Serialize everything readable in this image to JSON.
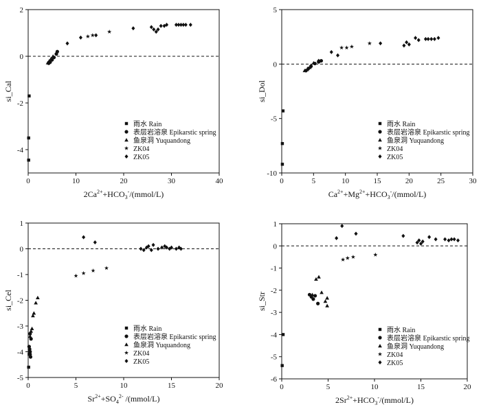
{
  "chart_data": [
    {
      "type": "scatter",
      "ylabel": "si_Cal",
      "xlabel_parts": [
        {
          "t": "2Ca"
        },
        {
          "t": "2+",
          "sup": true
        },
        {
          "t": "+HCO"
        },
        {
          "t": "3",
          "sub": true
        },
        {
          "t": "-",
          "sup": true
        },
        {
          "t": "/(mmol/L)"
        }
      ],
      "xlim": [
        0,
        40
      ],
      "ylim": [
        -5,
        2
      ],
      "xticks": [
        0,
        10,
        20,
        30,
        40
      ],
      "yticks": [
        -4,
        -2,
        0,
        2
      ],
      "ref_line_y": 0,
      "legend": [
        "雨水 Rain",
        "表层岩溶泉 Epikarstic spring",
        "鱼泉洞 Yuquandong",
        "ZK04",
        "ZK05"
      ],
      "series": [
        {
          "name": "雨水 Rain",
          "marker": "square",
          "points": [
            [
              0.2,
              -1.7
            ],
            [
              0.1,
              -3.5
            ],
            [
              0.1,
              -4.45
            ]
          ]
        },
        {
          "name": "表层岩溶泉 Epikarstic spring",
          "marker": "circle",
          "points": [
            [
              4.3,
              -0.3
            ],
            [
              4.6,
              -0.25
            ],
            [
              5.0,
              -0.15
            ],
            [
              5.4,
              -0.05
            ],
            [
              5.9,
              0.1
            ],
            [
              6.1,
              0.2
            ]
          ]
        },
        {
          "name": "鱼泉洞 Yuquandong",
          "marker": "triangle",
          "points": [
            [
              4.1,
              -0.28
            ],
            [
              4.4,
              -0.2
            ],
            [
              4.8,
              -0.1
            ],
            [
              5.2,
              0.0
            ]
          ]
        },
        {
          "name": "ZK04",
          "marker": "star",
          "points": [
            [
              12.5,
              0.85
            ],
            [
              13.5,
              0.9
            ],
            [
              17.0,
              1.05
            ]
          ]
        },
        {
          "name": "ZK05",
          "marker": "diamond",
          "points": [
            [
              8.2,
              0.55
            ],
            [
              11.0,
              0.8
            ],
            [
              14.2,
              0.9
            ],
            [
              22.0,
              1.2
            ],
            [
              25.8,
              1.25
            ],
            [
              26.3,
              1.15
            ],
            [
              26.8,
              1.05
            ],
            [
              27.2,
              1.15
            ],
            [
              27.8,
              1.3
            ],
            [
              28.5,
              1.3
            ],
            [
              29.0,
              1.35
            ],
            [
              31.0,
              1.35
            ],
            [
              31.5,
              1.35
            ],
            [
              32.0,
              1.35
            ],
            [
              32.5,
              1.35
            ],
            [
              33.0,
              1.35
            ],
            [
              34.0,
              1.35
            ]
          ]
        }
      ]
    },
    {
      "type": "scatter",
      "ylabel": "si_Dol",
      "xlabel_parts": [
        {
          "t": "Ca"
        },
        {
          "t": "2+",
          "sup": true
        },
        {
          "t": "+Mg"
        },
        {
          "t": "2+",
          "sup": true
        },
        {
          "t": "+HCO"
        },
        {
          "t": "3",
          "sub": true
        },
        {
          "t": "-",
          "sup": true
        },
        {
          "t": "/(mmol/L)"
        }
      ],
      "xlim": [
        0,
        30
      ],
      "ylim": [
        -10,
        5
      ],
      "xticks": [
        0,
        5,
        10,
        15,
        20,
        25,
        30
      ],
      "yticks": [
        -10,
        -5,
        0,
        5
      ],
      "ref_line_y": 0,
      "legend": [
        "雨水 Rain",
        "表层岩溶泉 Epikarstic spring",
        "鱼泉洞 Yuquandong",
        "ZK04",
        "ZK05"
      ],
      "series": [
        {
          "name": "雨水 Rain",
          "marker": "square",
          "points": [
            [
              0.2,
              -4.3
            ],
            [
              0.1,
              -7.3
            ],
            [
              0.1,
              -9.2
            ]
          ]
        },
        {
          "name": "表层岩溶泉 Epikarstic spring",
          "marker": "circle",
          "points": [
            [
              3.8,
              -0.6
            ],
            [
              4.2,
              -0.4
            ],
            [
              4.6,
              -0.2
            ],
            [
              5.2,
              0.05
            ],
            [
              5.8,
              0.2
            ],
            [
              6.2,
              0.3
            ]
          ]
        },
        {
          "name": "鱼泉洞 Yuquandong",
          "marker": "triangle",
          "points": [
            [
              3.6,
              -0.6
            ],
            [
              4.0,
              -0.5
            ],
            [
              4.4,
              -0.3
            ],
            [
              5.0,
              0.1
            ]
          ]
        },
        {
          "name": "ZK04",
          "marker": "star",
          "points": [
            [
              9.4,
              1.5
            ],
            [
              10.2,
              1.5
            ],
            [
              11.0,
              1.6
            ],
            [
              13.8,
              1.9
            ]
          ]
        },
        {
          "name": "ZK05",
          "marker": "diamond",
          "points": [
            [
              5.8,
              0.3
            ],
            [
              7.8,
              1.1
            ],
            [
              8.8,
              0.8
            ],
            [
              15.5,
              1.9
            ],
            [
              19.2,
              1.7
            ],
            [
              19.6,
              2.0
            ],
            [
              20.0,
              1.8
            ],
            [
              21.0,
              2.4
            ],
            [
              21.5,
              2.2
            ],
            [
              22.6,
              2.3
            ],
            [
              23.0,
              2.3
            ],
            [
              23.5,
              2.3
            ],
            [
              24.0,
              2.3
            ],
            [
              24.6,
              2.4
            ]
          ]
        }
      ]
    },
    {
      "type": "scatter",
      "ylabel": "si_Cel",
      "xlabel_parts": [
        {
          "t": "Sr"
        },
        {
          "t": "2+",
          "sup": true
        },
        {
          "t": "+SO"
        },
        {
          "t": "4",
          "sub": true
        },
        {
          "t": "2-",
          "sup": true
        },
        {
          "t": " /(mmol/L)"
        }
      ],
      "xlim": [
        0,
        20
      ],
      "ylim": [
        -5,
        1
      ],
      "xticks": [
        0,
        5,
        10,
        15,
        20
      ],
      "yticks": [
        -5,
        -4,
        -3,
        -2,
        -1,
        0,
        1
      ],
      "ref_line_y": 0,
      "legend": [
        "雨水 Rain",
        "表层岩溶泉 Epikarstic spring",
        "鱼泉洞 Yuquandong",
        "ZK04",
        "ZK05"
      ],
      "series": [
        {
          "name": "雨水 Rain",
          "marker": "square",
          "points": [
            [
              0.05,
              -4.6
            ],
            [
              0.1,
              -4.1
            ]
          ]
        },
        {
          "name": "表层岩溶泉 Epikarstic spring",
          "marker": "circle",
          "points": [
            [
              0.1,
              -3.8
            ],
            [
              0.15,
              -3.9
            ],
            [
              0.2,
              -4.0
            ],
            [
              0.2,
              -4.1
            ],
            [
              0.25,
              -4.2
            ],
            [
              0.3,
              -3.5
            ],
            [
              0.2,
              -3.3
            ]
          ]
        },
        {
          "name": "鱼泉洞 Yuquandong",
          "marker": "triangle",
          "points": [
            [
              0.2,
              -3.4
            ],
            [
              0.3,
              -3.2
            ],
            [
              0.4,
              -3.1
            ],
            [
              0.5,
              -2.6
            ],
            [
              0.6,
              -2.5
            ],
            [
              0.8,
              -2.1
            ],
            [
              1.0,
              -1.9
            ]
          ]
        },
        {
          "name": "ZK04",
          "marker": "star",
          "points": [
            [
              5.0,
              -1.05
            ],
            [
              5.8,
              -0.95
            ],
            [
              6.8,
              -0.85
            ],
            [
              8.2,
              -0.75
            ]
          ]
        },
        {
          "name": "ZK05",
          "marker": "diamond",
          "points": [
            [
              5.8,
              0.45
            ],
            [
              7.0,
              0.25
            ],
            [
              11.8,
              0.0
            ],
            [
              12.1,
              -0.05
            ],
            [
              12.4,
              0.05
            ],
            [
              12.6,
              0.1
            ],
            [
              12.9,
              -0.05
            ],
            [
              13.1,
              0.15
            ],
            [
              13.6,
              0.0
            ],
            [
              14.0,
              0.05
            ],
            [
              14.3,
              0.1
            ],
            [
              14.5,
              0.05
            ],
            [
              14.8,
              0.0
            ],
            [
              15.0,
              0.05
            ],
            [
              15.5,
              0.0
            ],
            [
              15.8,
              0.05
            ],
            [
              16.0,
              0.0
            ]
          ]
        }
      ]
    },
    {
      "type": "scatter",
      "ylabel": "si_Str",
      "xlabel_parts": [
        {
          "t": "2Sr"
        },
        {
          "t": "2+",
          "sup": true
        },
        {
          "t": "+HCO"
        },
        {
          "t": "3",
          "sub": true
        },
        {
          "t": "-",
          "sup": true
        },
        {
          "t": "/(mmol/L)"
        }
      ],
      "xlim": [
        0,
        20
      ],
      "ylim": [
        -6,
        1
      ],
      "xticks": [
        0,
        5,
        10,
        15,
        20
      ],
      "yticks": [
        -6,
        -5,
        -4,
        -3,
        -2,
        -1,
        0,
        1
      ],
      "ref_line_y": 0,
      "legend": [
        "雨水 Rain",
        "表层岩溶泉 Epikarstic spring",
        "鱼泉洞 Yuquandong",
        "ZK04",
        "ZK05"
      ],
      "series": [
        {
          "name": "雨水 Rain",
          "marker": "square",
          "points": [
            [
              0.15,
              -4.0
            ],
            [
              0.05,
              -5.4
            ]
          ]
        },
        {
          "name": "表层岩溶泉 Epikarstic spring",
          "marker": "circle",
          "points": [
            [
              3.0,
              -2.2
            ],
            [
              3.2,
              -2.3
            ],
            [
              3.4,
              -2.4
            ],
            [
              3.6,
              -2.25
            ],
            [
              3.9,
              -2.6
            ]
          ]
        },
        {
          "name": "鱼泉洞 Yuquandong",
          "marker": "triangle",
          "points": [
            [
              3.3,
              -2.2
            ],
            [
              3.7,
              -1.5
            ],
            [
              4.0,
              -1.4
            ],
            [
              4.3,
              -2.1
            ],
            [
              4.7,
              -2.5
            ],
            [
              4.9,
              -2.35
            ],
            [
              4.9,
              -2.7
            ]
          ]
        },
        {
          "name": "ZK04",
          "marker": "star",
          "points": [
            [
              6.6,
              -0.62
            ],
            [
              7.1,
              -0.55
            ],
            [
              7.7,
              -0.5
            ],
            [
              10.1,
              -0.4
            ]
          ]
        },
        {
          "name": "ZK05",
          "marker": "diamond",
          "points": [
            [
              5.9,
              0.35
            ],
            [
              6.5,
              0.9
            ],
            [
              8.0,
              0.55
            ],
            [
              13.1,
              0.45
            ],
            [
              14.6,
              0.15
            ],
            [
              14.8,
              0.25
            ],
            [
              15.0,
              0.1
            ],
            [
              15.2,
              0.2
            ],
            [
              15.9,
              0.4
            ],
            [
              16.6,
              0.3
            ],
            [
              17.6,
              0.3
            ],
            [
              18.0,
              0.25
            ],
            [
              18.3,
              0.3
            ],
            [
              18.6,
              0.3
            ],
            [
              19.0,
              0.25
            ]
          ]
        }
      ]
    }
  ]
}
